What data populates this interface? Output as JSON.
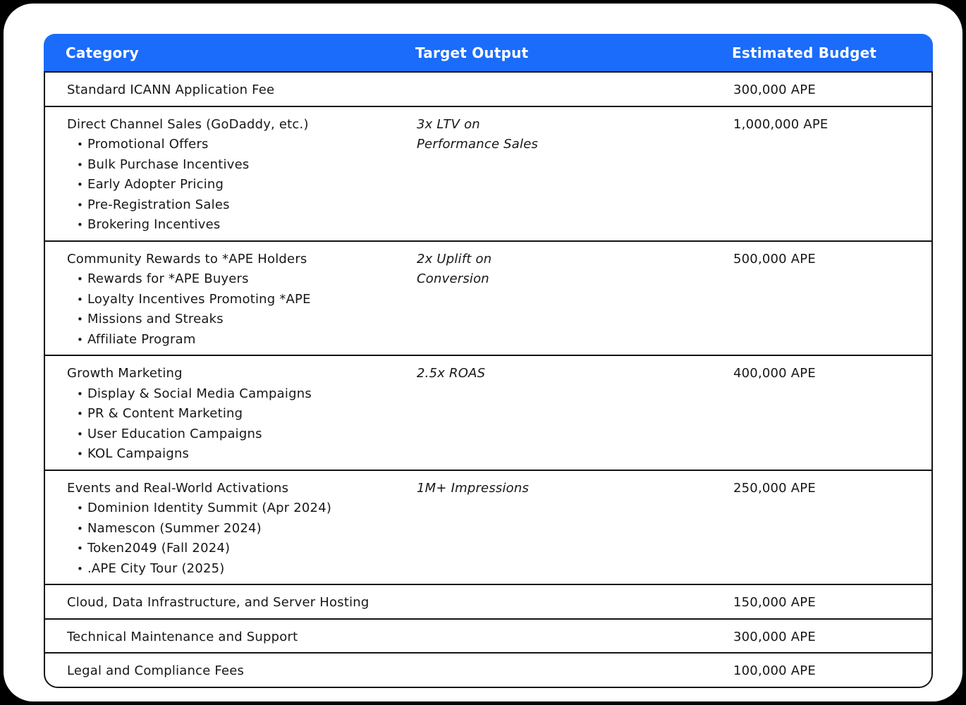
{
  "colors": {
    "page_background": "#000000",
    "card_background": "#ffffff",
    "header_background": "#1b6cfa",
    "header_text": "#ffffff",
    "body_text": "#171717",
    "border": "#141414"
  },
  "table": {
    "headers": [
      {
        "label": "Category"
      },
      {
        "label": "Target Output"
      },
      {
        "label": "Estimated Budget"
      }
    ],
    "rows": [
      {
        "category": "Standard ICANN Application Fee",
        "items": [],
        "target_lines": [],
        "budget": "300,000 APE"
      },
      {
        "category": "Direct Channel Sales (GoDaddy, etc.)",
        "items": [
          "Promotional Offers",
          "Bulk Purchase Incentives",
          "Early Adopter Pricing",
          "Pre-Registration Sales",
          "Brokering Incentives"
        ],
        "target_lines": [
          "3x LTV on",
          "Performance Sales"
        ],
        "budget": "1,000,000 APE"
      },
      {
        "category": "Community Rewards to *APE Holders",
        "items": [
          "Rewards for *APE Buyers",
          "Loyalty Incentives Promoting *APE",
          "Missions and Streaks",
          "Affiliate Program"
        ],
        "target_lines": [
          "2x Uplift on",
          "Conversion"
        ],
        "budget": "500,000 APE"
      },
      {
        "category": "Growth Marketing",
        "items": [
          "Display & Social Media Campaigns",
          "PR & Content Marketing",
          "User Education Campaigns",
          "KOL Campaigns"
        ],
        "target_lines": [
          "2.5x ROAS"
        ],
        "budget": "400,000 APE"
      },
      {
        "category": "Events and Real-World Activations",
        "items": [
          "Dominion Identity Summit (Apr 2024)",
          "Namescon (Summer 2024)",
          "Token2049 (Fall 2024)",
          ".APE City Tour (2025)"
        ],
        "target_lines": [
          "1M+ Impressions"
        ],
        "budget": "250,000 APE"
      },
      {
        "category": "Cloud, Data Infrastructure, and Server Hosting",
        "items": [],
        "target_lines": [],
        "budget": "150,000 APE"
      },
      {
        "category": "Technical Maintenance and Support",
        "items": [],
        "target_lines": [],
        "budget": "300,000 APE"
      },
      {
        "category": "Legal and Compliance Fees",
        "items": [],
        "target_lines": [],
        "budget": "100,000 APE"
      }
    ]
  }
}
